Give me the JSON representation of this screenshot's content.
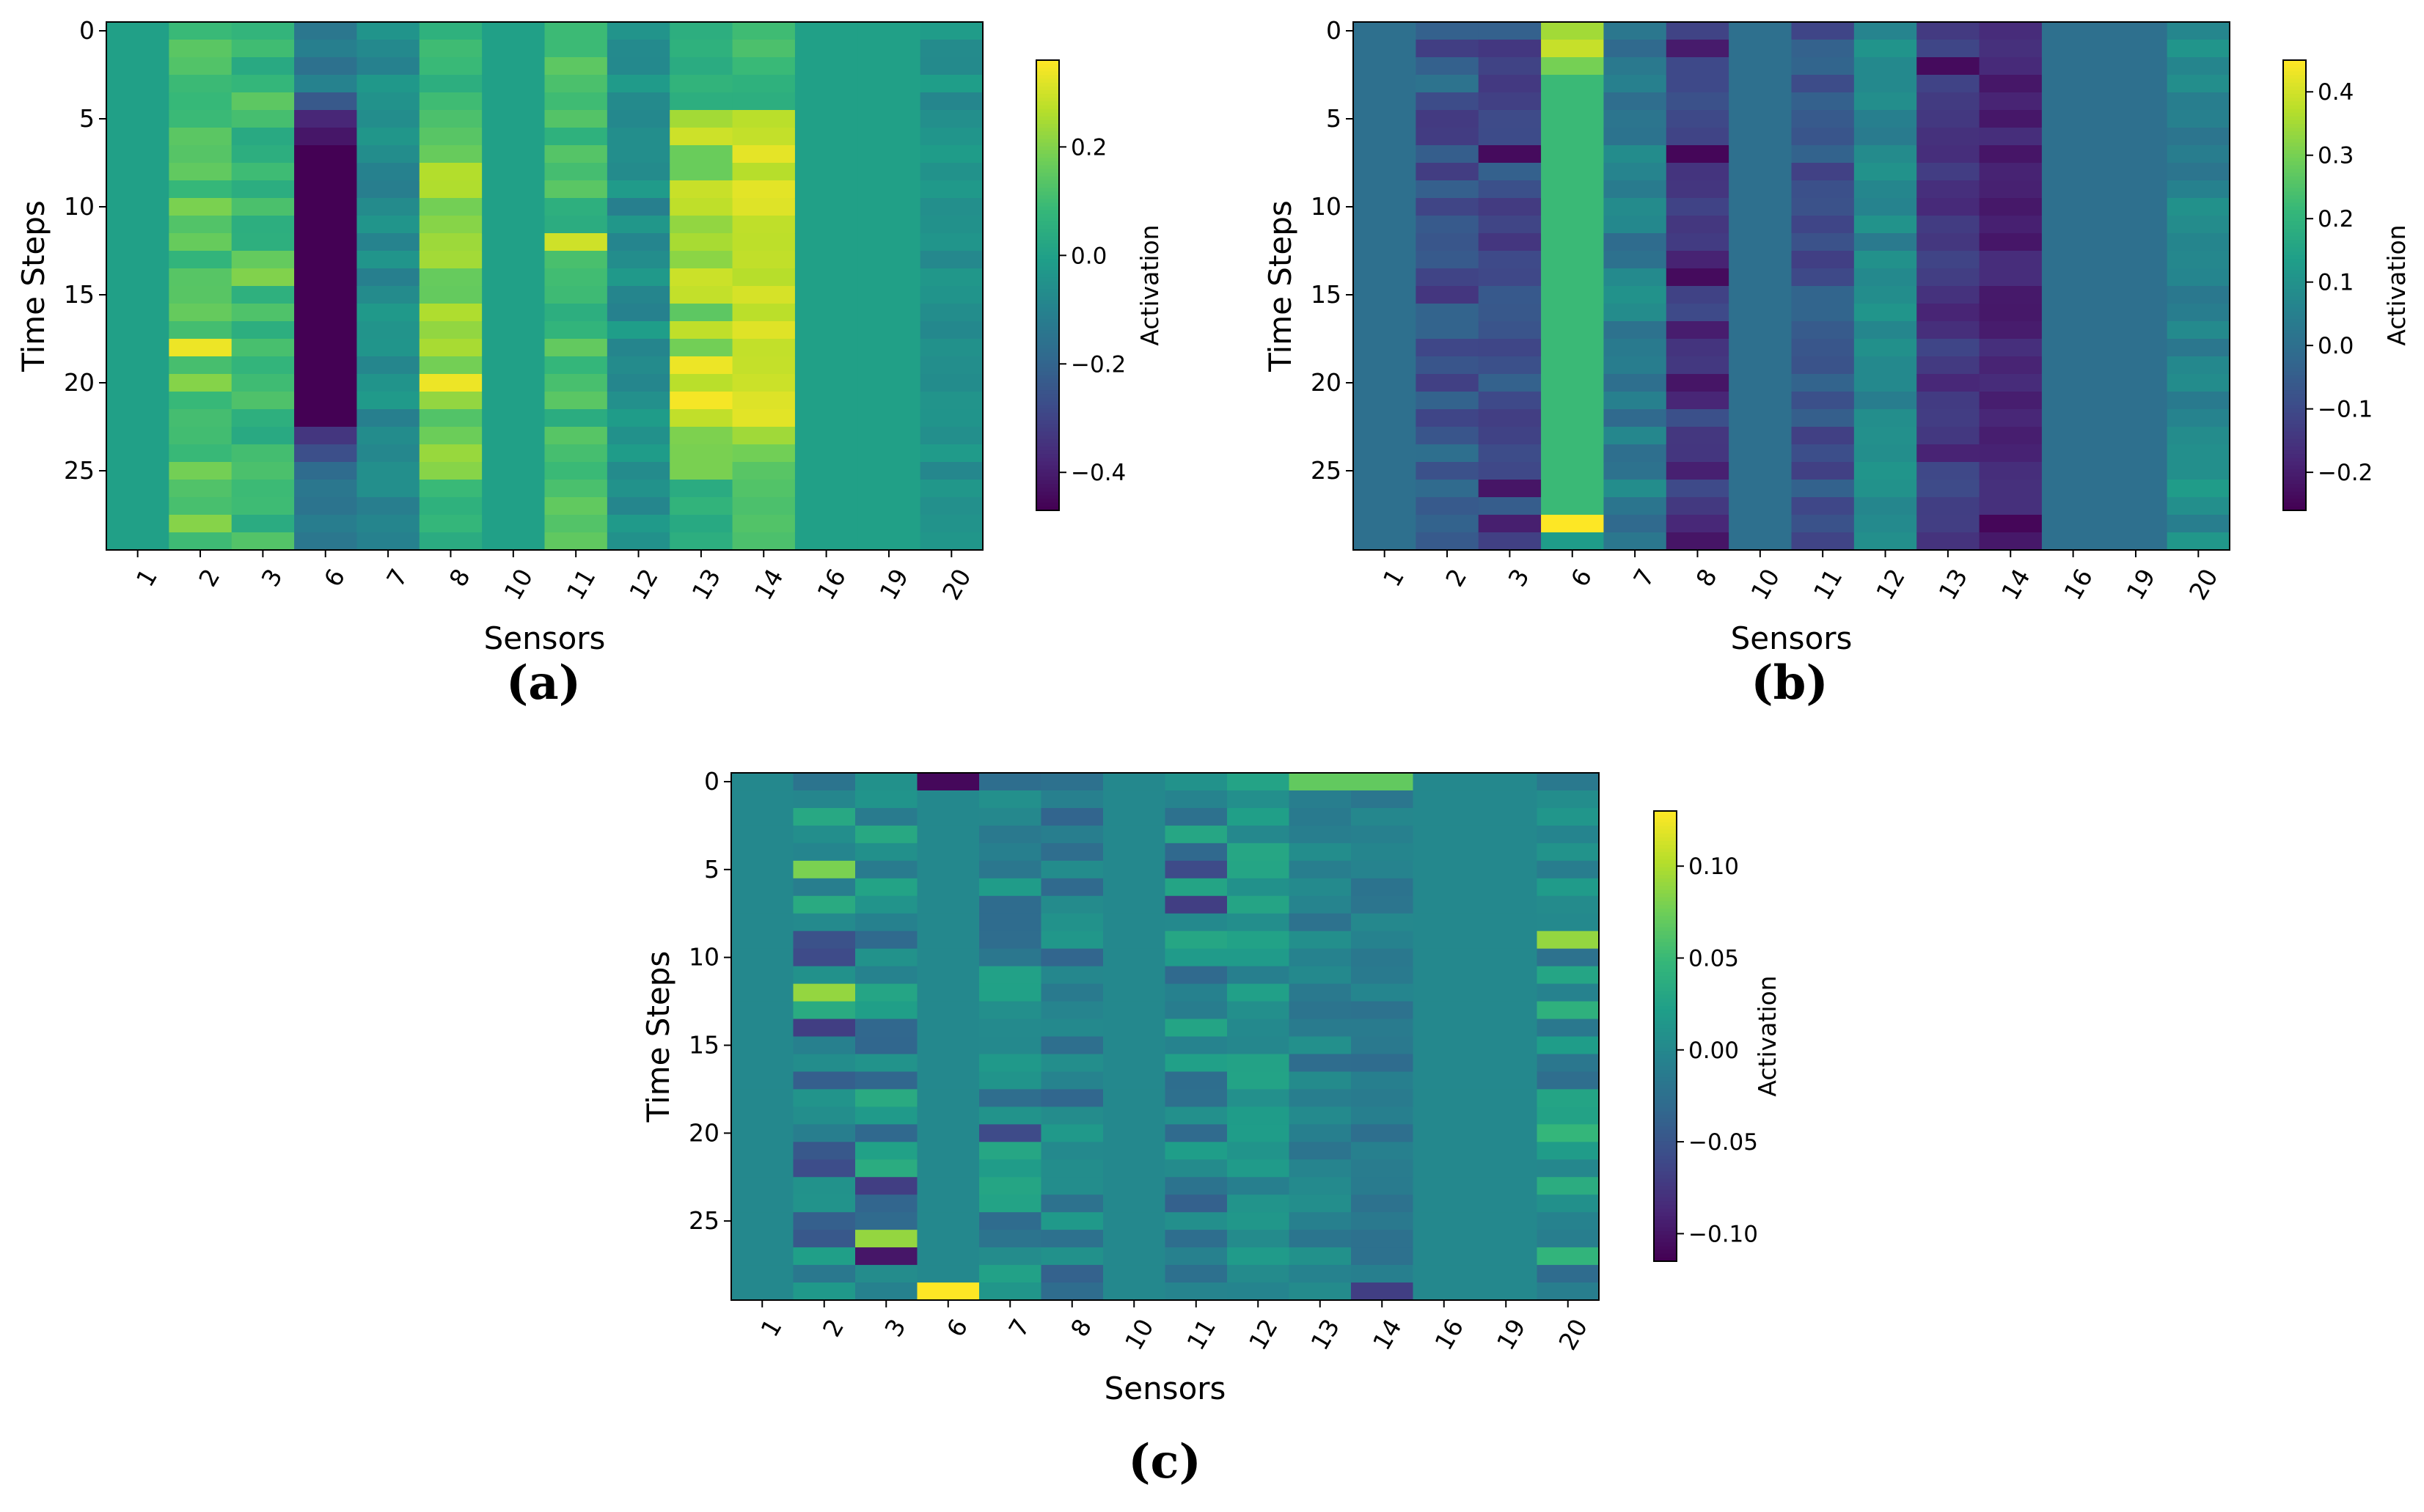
{
  "figure": {
    "colormap": "viridis",
    "colormap_stops": [
      "#440154",
      "#482878",
      "#3e4a89",
      "#31688e",
      "#26828e",
      "#1f9e89",
      "#35b779",
      "#6ece58",
      "#b5de2b",
      "#fde725"
    ]
  },
  "chart_data": [
    {
      "type": "heatmap",
      "panel_label": "(a)",
      "xlabel": "Sensors",
      "ylabel": "Time Steps",
      "colorbar_label": "Activation",
      "x_categories": [
        "1",
        "2",
        "3",
        "6",
        "7",
        "8",
        "10",
        "11",
        "12",
        "13",
        "14",
        "16",
        "19",
        "20"
      ],
      "y_ticks": [
        0,
        5,
        10,
        15,
        20,
        25
      ],
      "n_rows": 30,
      "clim": [
        -0.47,
        0.36
      ],
      "colorbar_ticks": [
        0.2,
        0.0,
        -0.2,
        -0.4
      ],
      "colorbar_tick_labels": [
        "0.2",
        "0.0",
        "−0.2",
        "−0.4"
      ],
      "columns": [
        {
          "base": 0.0,
          "jitter": 0,
          "seed": 11
        },
        {
          "base": 0.14,
          "jitter": 0.07,
          "seed": 12,
          "overrides": {
            "18": 0.34
          }
        },
        {
          "base": 0.09,
          "jitter": 0.06,
          "seed": 13,
          "overrides": {
            "14": 0.2,
            "13": 0.16
          }
        },
        {
          "base": -0.47,
          "jitter": 0.0,
          "seed": 14,
          "overrides": {
            "0": -0.14,
            "1": -0.11,
            "2": -0.16,
            "3": -0.1,
            "4": -0.24,
            "5": -0.38,
            "6": -0.42,
            "23": -0.34,
            "24": -0.27,
            "25": -0.18,
            "26": -0.14,
            "27": -0.15,
            "28": -0.12,
            "29": -0.14
          }
        },
        {
          "base": -0.07,
          "jitter": 0.05,
          "seed": 15
        },
        {
          "base": 0.2,
          "jitter": 0.07,
          "seed": 16,
          "overrides": {
            "0": 0.06,
            "1": 0.1,
            "2": 0.09,
            "3": 0.05,
            "4": 0.1,
            "5": 0.12,
            "6": 0.14,
            "20": 0.34,
            "26": 0.09,
            "27": 0.06,
            "28": 0.08,
            "29": 0.04
          }
        },
        {
          "base": 0.0,
          "jitter": 0,
          "seed": 17
        },
        {
          "base": 0.1,
          "jitter": 0.06,
          "seed": 18,
          "overrides": {
            "12": 0.3
          }
        },
        {
          "base": -0.06,
          "jitter": 0.05,
          "seed": 19
        },
        {
          "base": 0.22,
          "jitter": 0.08,
          "seed": 20,
          "overrides": {
            "0": 0.05,
            "1": 0.06,
            "2": 0.04,
            "3": 0.07,
            "4": 0.05,
            "19": 0.34,
            "21": 0.35,
            "26": 0.04,
            "27": 0.07,
            "28": 0.03,
            "29": 0.05
          }
        },
        {
          "base": 0.3,
          "jitter": 0.04,
          "seed": 21,
          "overrides": {
            "0": 0.1,
            "1": 0.12,
            "2": 0.09,
            "3": 0.06,
            "4": 0.05,
            "23": 0.24,
            "24": 0.18,
            "25": 0.14,
            "26": 0.13,
            "27": 0.12,
            "28": 0.13,
            "29": 0.12
          }
        },
        {
          "base": 0.0,
          "jitter": 0,
          "seed": 22
        },
        {
          "base": 0.0,
          "jitter": 0,
          "seed": 23
        },
        {
          "base": -0.05,
          "jitter": 0.04,
          "seed": 24
        }
      ]
    },
    {
      "type": "heatmap",
      "panel_label": "(b)",
      "xlabel": "Sensors",
      "ylabel": "Time Steps",
      "colorbar_label": "Activation",
      "x_categories": [
        "1",
        "2",
        "3",
        "6",
        "7",
        "8",
        "10",
        "11",
        "12",
        "13",
        "14",
        "16",
        "19",
        "20"
      ],
      "y_ticks": [
        0,
        5,
        10,
        15,
        20,
        25
      ],
      "n_rows": 30,
      "clim": [
        -0.26,
        0.45
      ],
      "colorbar_ticks": [
        0.4,
        0.3,
        0.2,
        0.1,
        0.0,
        -0.1,
        -0.2
      ],
      "colorbar_tick_labels": [
        "0.4",
        "0.3",
        "0.2",
        "0.1",
        "0.0",
        "−0.1",
        "−0.2"
      ],
      "columns": [
        {
          "base": 0.0,
          "jitter": 0,
          "seed": 31
        },
        {
          "base": -0.07,
          "jitter": 0.08,
          "seed": 32
        },
        {
          "base": -0.09,
          "jitter": 0.06,
          "seed": 33,
          "overrides": {
            "7": -0.24,
            "26": -0.22,
            "28": -0.2
          }
        },
        {
          "base": 0.22,
          "jitter": 0.0,
          "seed": 34,
          "overrides": {
            "0": 0.35,
            "1": 0.39,
            "2": 0.3,
            "28": 0.45,
            "29": 0.13
          }
        },
        {
          "base": 0.04,
          "jitter": 0.06,
          "seed": 35
        },
        {
          "base": -0.15,
          "jitter": 0.07,
          "seed": 36,
          "overrides": {
            "7": -0.25,
            "14": -0.24,
            "20": -0.22
          }
        },
        {
          "base": 0.0,
          "jitter": 0,
          "seed": 37
        },
        {
          "base": -0.08,
          "jitter": 0.05,
          "seed": 38
        },
        {
          "base": 0.07,
          "jitter": 0.04,
          "seed": 39
        },
        {
          "base": -0.15,
          "jitter": 0.05,
          "seed": 40,
          "overrides": {
            "2": -0.24
          }
        },
        {
          "base": -0.19,
          "jitter": 0.03,
          "seed": 41,
          "overrides": {
            "28": -0.25
          }
        },
        {
          "base": 0.0,
          "jitter": 0,
          "seed": 42
        },
        {
          "base": 0.0,
          "jitter": 0,
          "seed": 43
        },
        {
          "base": 0.07,
          "jitter": 0.06,
          "seed": 44
        }
      ]
    },
    {
      "type": "heatmap",
      "panel_label": "(c)",
      "xlabel": "Sensors",
      "ylabel": "Time Steps",
      "colorbar_label": "Activation",
      "x_categories": [
        "1",
        "2",
        "3",
        "6",
        "7",
        "8",
        "10",
        "11",
        "12",
        "13",
        "14",
        "16",
        "19",
        "20"
      ],
      "y_ticks": [
        0,
        5,
        10,
        15,
        20,
        25
      ],
      "n_rows": 30,
      "clim": [
        -0.115,
        0.13
      ],
      "colorbar_ticks": [
        0.1,
        0.05,
        0.0,
        -0.05,
        -0.1
      ],
      "colorbar_tick_labels": [
        "0.10",
        "0.05",
        "0.00",
        "−0.05",
        "−0.10"
      ],
      "columns": [
        {
          "base": 0.0,
          "jitter": 0,
          "seed": 51
        },
        {
          "base": -0.01,
          "jitter": 0.05,
          "seed": 52,
          "overrides": {
            "5": 0.08,
            "12": 0.09,
            "14": -0.07,
            "10": -0.06
          }
        },
        {
          "base": 0.0,
          "jitter": 0.04,
          "seed": 53,
          "overrides": {
            "26": 0.09,
            "27": -0.1,
            "23": -0.07
          }
        },
        {
          "base": 0.0,
          "jitter": 0.0,
          "seed": 54,
          "overrides": {
            "0": -0.11,
            "29": 0.13
          }
        },
        {
          "base": 0.0,
          "jitter": 0.03,
          "seed": 55,
          "overrides": {
            "20": -0.06
          }
        },
        {
          "base": -0.01,
          "jitter": 0.03,
          "seed": 56
        },
        {
          "base": 0.0,
          "jitter": 0,
          "seed": 57
        },
        {
          "base": -0.005,
          "jitter": 0.035,
          "seed": 58,
          "overrides": {
            "5": -0.06,
            "7": -0.07
          }
        },
        {
          "base": 0.01,
          "jitter": 0.02,
          "seed": 59
        },
        {
          "base": -0.01,
          "jitter": 0.02,
          "seed": 60,
          "overrides": {
            "0": 0.07
          }
        },
        {
          "base": -0.015,
          "jitter": 0.015,
          "seed": 61,
          "overrides": {
            "0": 0.07,
            "29": -0.07
          }
        },
        {
          "base": 0.0,
          "jitter": 0,
          "seed": 62
        },
        {
          "base": 0.0,
          "jitter": 0,
          "seed": 63
        },
        {
          "base": 0.01,
          "jitter": 0.04,
          "seed": 64,
          "overrides": {
            "9": 0.09
          }
        }
      ]
    }
  ]
}
